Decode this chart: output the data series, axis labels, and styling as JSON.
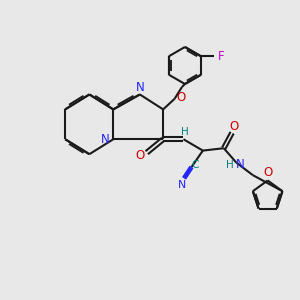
{
  "bg_color": "#e8e8e8",
  "bond_color": "#1a1a1a",
  "N_color": "#2323ff",
  "O_color": "#cc0000",
  "F_color": "#cc00cc",
  "CN_color": "#008080",
  "H_color": "#008080",
  "lw": 1.5,
  "xlim": [
    0,
    10
  ],
  "ylim": [
    0,
    10
  ]
}
